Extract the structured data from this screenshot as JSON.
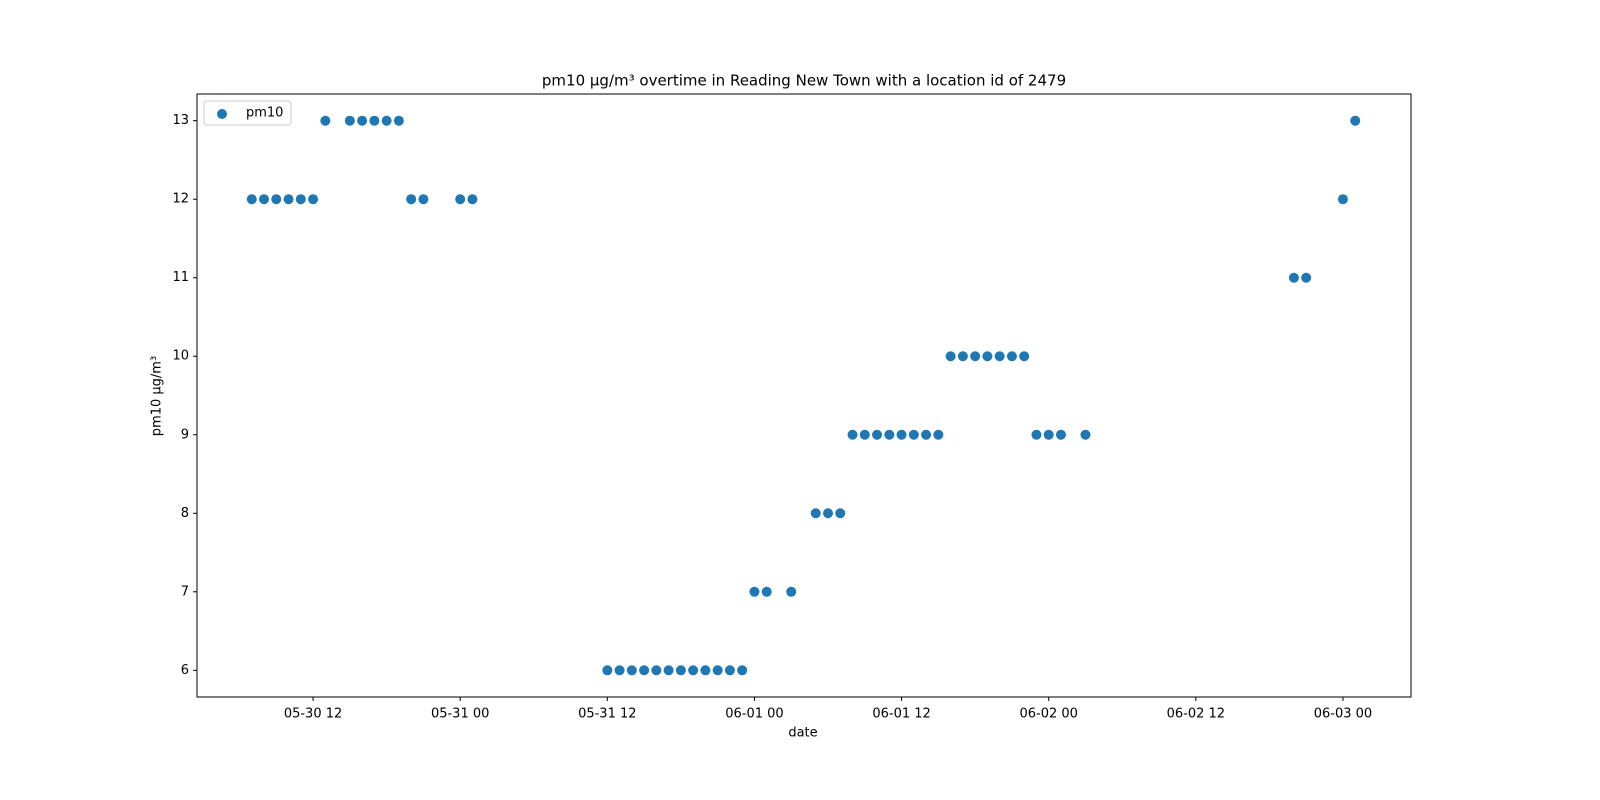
{
  "chart_data": {
    "type": "scatter",
    "title": "pm10 µg/m³ overtime in Reading New Town with a location id of 2479",
    "x_label": "date",
    "y_label": "pm10 µg/m³",
    "series": [
      {
        "name": "pm10",
        "color": "#1f77b4",
        "x": [
          "05-30 07",
          "05-30 08",
          "05-30 09",
          "05-30 10",
          "05-30 11",
          "05-30 12",
          "05-30 13",
          "05-30 15",
          "05-30 16",
          "05-30 17",
          "05-30 18",
          "05-30 19",
          "05-30 20",
          "05-30 21",
          "05-31 00",
          "05-31 01",
          "05-31 12",
          "05-31 13",
          "05-31 14",
          "05-31 15",
          "05-31 16",
          "05-31 17",
          "05-31 18",
          "05-31 19",
          "05-31 20",
          "05-31 21",
          "05-31 22",
          "05-31 23",
          "06-01 00",
          "06-01 01",
          "06-01 03",
          "06-01 05",
          "06-01 06",
          "06-01 07",
          "06-01 08",
          "06-01 09",
          "06-01 10",
          "06-01 11",
          "06-01 12",
          "06-01 13",
          "06-01 14",
          "06-01 15",
          "06-01 16",
          "06-01 17",
          "06-01 18",
          "06-01 19",
          "06-01 20",
          "06-01 21",
          "06-01 22",
          "06-01 23",
          "06-02 00",
          "06-02 01",
          "06-02 03",
          "06-02 20",
          "06-02 21",
          "06-03 00",
          "06-03 01"
        ],
        "values": [
          12,
          12,
          12,
          12,
          12,
          12,
          13,
          13,
          13,
          13,
          13,
          13,
          12,
          12,
          12,
          12,
          6,
          6,
          6,
          6,
          6,
          6,
          6,
          6,
          6,
          6,
          6,
          6,
          7,
          7,
          7,
          8,
          8,
          8,
          9,
          9,
          9,
          9,
          9,
          9,
          9,
          9,
          10,
          10,
          10,
          10,
          10,
          10,
          10,
          9,
          9,
          9,
          9,
          11,
          11,
          12,
          13
        ]
      }
    ],
    "xlim": [
      "05-30 02:32",
      "06-03 05:33"
    ],
    "xticks": [
      "05-30 12",
      "05-31 00",
      "05-31 12",
      "06-01 00",
      "06-01 12",
      "06-02 00",
      "06-02 12",
      "06-03 00"
    ],
    "ylim": [
      5.66,
      13.34
    ],
    "yticks": [
      6,
      7,
      8,
      9,
      10,
      11,
      12,
      13
    ],
    "legend": "upper left"
  }
}
